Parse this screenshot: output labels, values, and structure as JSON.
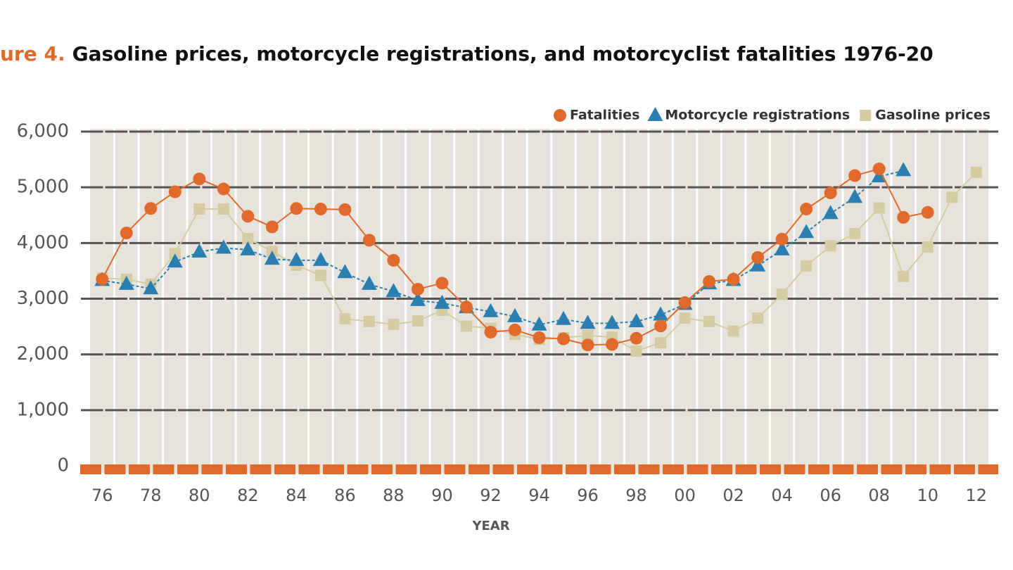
{
  "chart_data": {
    "type": "line",
    "title_prefix": "ure 4.",
    "title": "Gasoline prices, motorcycle registrations, and motorcyclist fatalities 1976-20",
    "x_label": "YEAR",
    "categories": [
      "76",
      null,
      "78",
      null,
      "80",
      null,
      "82",
      null,
      "84",
      null,
      "86",
      null,
      "88",
      null,
      "90",
      null,
      "92",
      null,
      "94",
      null,
      "96",
      null,
      "98",
      null,
      "00",
      null,
      "02",
      null,
      "04",
      null,
      "06",
      null,
      "08",
      null,
      "10",
      null,
      "12"
    ],
    "series": [
      {
        "name": "Fatalities",
        "color": "#e06a2b",
        "marker": "circle",
        "values": [
          3350,
          4180,
          4620,
          4920,
          5150,
          4970,
          4480,
          4290,
          4620,
          4610,
          4600,
          4050,
          3690,
          3170,
          3280,
          2850,
          2400,
          2440,
          2300,
          2280,
          2170,
          2180,
          2290,
          2510,
          2930,
          3310,
          3350,
          3740,
          4070,
          4610,
          4900,
          5210,
          5330,
          4460,
          4550,
          null,
          null
        ]
      },
      {
        "name": "Motorcycle registrations",
        "color": "#2a7fb0",
        "marker": "triangle",
        "values": [
          3330,
          3260,
          3180,
          3660,
          3840,
          3910,
          3880,
          3710,
          3690,
          3690,
          3470,
          3260,
          3130,
          2970,
          2920,
          2840,
          2770,
          2680,
          2530,
          2630,
          2560,
          2560,
          2590,
          2710,
          2900,
          3270,
          3330,
          3590,
          3880,
          4190,
          4530,
          4820,
          5190,
          5300,
          null,
          null,
          null
        ]
      },
      {
        "name": "Gasoline prices",
        "color": "#d6cca3",
        "marker": "square",
        "values": [
          3370,
          3350,
          3260,
          3810,
          4610,
          4610,
          4080,
          3850,
          3600,
          3420,
          2640,
          2590,
          2540,
          2600,
          2790,
          2510,
          2470,
          2360,
          2270,
          2300,
          2340,
          2310,
          2060,
          2210,
          2650,
          2590,
          2420,
          2650,
          3080,
          3590,
          3950,
          4170,
          4630,
          3400,
          3930,
          4820,
          5270
        ]
      }
    ],
    "ylim": [
      0,
      6000
    ],
    "yticks": [
      0,
      {
        "value": 1000,
        "label": "1,000"
      },
      {
        "value": 2000,
        "label": "2,000"
      },
      {
        "value": 3000,
        "label": "3,000"
      },
      {
        "value": 4000,
        "label": "4,000"
      },
      {
        "value": 5000,
        "label": "5,000"
      },
      {
        "value": 6000,
        "label": "6,000"
      }
    ],
    "grid": true,
    "legend": "top-right"
  }
}
